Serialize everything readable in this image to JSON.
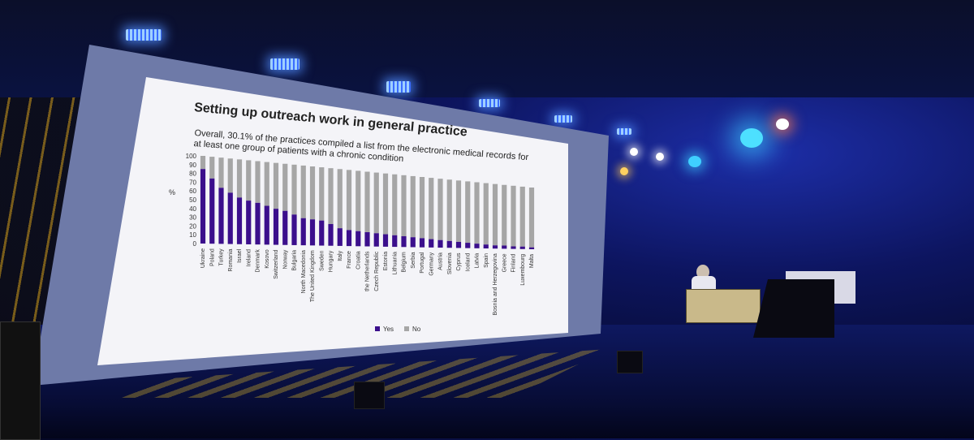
{
  "slide": {
    "title": "Setting up outreach work in general practice",
    "subtitle": "Overall, 30.1% of the practices compiled a list from the electronic medical records for at least one group of patients with a chronic condition"
  },
  "colors": {
    "yes": "#3b0f8c",
    "no": "#a6a6a6",
    "slide_bg": "#f4f4f8",
    "stage_blue": "#1d2ea8"
  },
  "chart_data": {
    "type": "bar",
    "stacked": true,
    "title": "Setting up outreach work in general practice",
    "ylabel": "%",
    "ylim": [
      0,
      100
    ],
    "yticks": [
      0,
      10,
      20,
      30,
      40,
      50,
      60,
      70,
      80,
      90,
      100
    ],
    "grid": false,
    "legend": "bottom",
    "categories": [
      "Ukraine",
      "Poland",
      "Turkey",
      "Romania",
      "Israel",
      "Ireland",
      "Denmark",
      "Kosovo",
      "Switzerland",
      "Norway",
      "Bulgaria",
      "North Macedonia",
      "The United Kingdom",
      "Sweden",
      "Hungary",
      "Italy",
      "France",
      "Croatia",
      "the Netherlands",
      "Czech Republic",
      "Estonia",
      "Lithuania",
      "Belgium",
      "Serbia",
      "Portugal",
      "Germany",
      "Austria",
      "Slovenia",
      "Cyprus",
      "Iceland",
      "Latvia",
      "Spain",
      "Bosnia and Herzegovina",
      "Greece",
      "Finland",
      "Luxembourg",
      "Malta"
    ],
    "series": [
      {
        "name": "Yes",
        "values": [
          85,
          75,
          65,
          60,
          55,
          52,
          50,
          47,
          44,
          42,
          38,
          34,
          33,
          32,
          28,
          23,
          21,
          20,
          19,
          18,
          17,
          16,
          15,
          14,
          13,
          12,
          11,
          10,
          9,
          8,
          7,
          6,
          5,
          5,
          4,
          4,
          3
        ]
      },
      {
        "name": "No",
        "values": [
          15,
          25,
          35,
          40,
          45,
          48,
          50,
          53,
          56,
          58,
          62,
          66,
          67,
          68,
          72,
          77,
          79,
          80,
          81,
          82,
          83,
          84,
          85,
          86,
          87,
          88,
          89,
          90,
          91,
          92,
          93,
          94,
          95,
          95,
          96,
          96,
          97
        ]
      }
    ]
  }
}
